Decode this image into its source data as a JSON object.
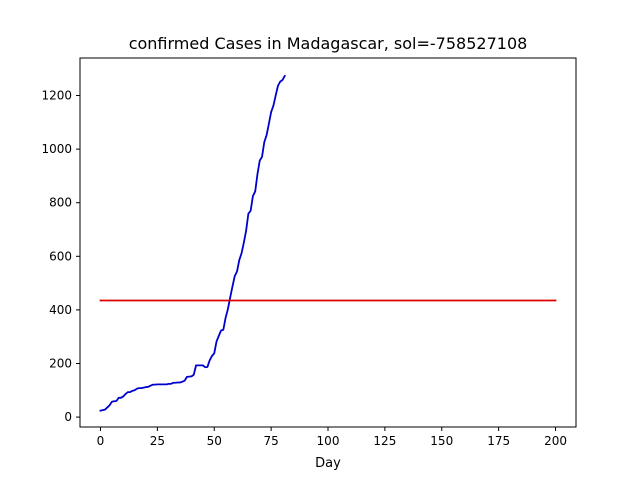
{
  "chart_data": {
    "type": "line",
    "title": "confirmed Cases in Madagascar, sol=-758527108",
    "xlabel": "Day",
    "ylabel": "",
    "xlim": [
      -9,
      209
    ],
    "ylim": [
      -37,
      1340
    ],
    "xticks": [
      0,
      25,
      50,
      75,
      100,
      125,
      150,
      175,
      200
    ],
    "yticks": [
      0,
      200,
      400,
      600,
      800,
      1000,
      1200
    ],
    "grid": false,
    "series": [
      {
        "color": "#0000cc",
        "x": [
          0,
          1,
          2,
          3,
          4,
          5,
          6,
          7,
          8,
          9,
          10,
          11,
          12,
          13,
          14,
          15,
          16,
          17,
          18,
          19,
          20,
          21,
          22,
          23,
          24,
          25,
          26,
          27,
          28,
          29,
          30,
          31,
          32,
          33,
          34,
          35,
          36,
          37,
          38,
          39,
          40,
          41,
          42,
          43,
          44,
          45,
          46,
          47,
          48,
          49,
          50,
          51,
          52,
          53,
          54,
          55,
          56,
          57,
          58,
          59,
          60,
          61,
          62,
          63,
          64,
          65,
          66,
          67,
          68,
          69,
          70,
          71,
          72,
          73,
          74,
          75,
          76,
          77,
          78,
          79,
          80,
          81
        ],
        "y": [
          24,
          26,
          28,
          36,
          44,
          57,
          59,
          60,
          72,
          72,
          77,
          86,
          93,
          93,
          98,
          100,
          106,
          108,
          108,
          110,
          112,
          113,
          117,
          121,
          121,
          122,
          122,
          122,
          122,
          122,
          124,
          124,
          128,
          128,
          129,
          129,
          132,
          136,
          150,
          151,
          152,
          158,
          193,
          193,
          193,
          193,
          186,
          187,
          212,
          228,
          238,
          282,
          303,
          323,
          326,
          371,
          403,
          446,
          487,
          526,
          543,
          586,
          611,
          651,
          695,
          759,
          770,
          825,
          842,
          907,
          957,
          971,
          1026,
          1052,
          1094,
          1138,
          1162,
          1200,
          1236,
          1252,
          1258,
          1273
        ]
      },
      {
        "color": "#dd0000",
        "x": [
          0,
          200
        ],
        "y": [
          435,
          435
        ]
      }
    ]
  }
}
